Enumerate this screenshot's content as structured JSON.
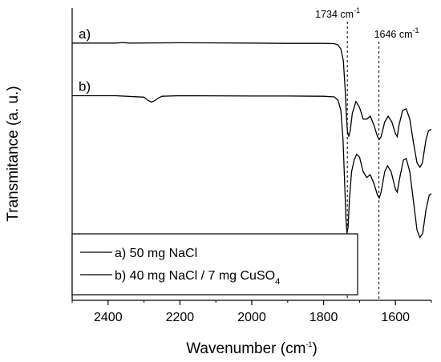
{
  "chart_data": {
    "type": "line",
    "xlabel": "Wavenumber",
    "xlabel_unit": "cm",
    "xlabel_unit_exp": "-1",
    "ylabel": "Transmitance (a. u.)",
    "xlim": [
      2500,
      1500
    ],
    "x_reversed": true,
    "ylim": [
      0,
      100
    ],
    "y_ticks": "none",
    "x_ticks": [
      2400,
      2200,
      2000,
      1800,
      1600
    ],
    "grid": false,
    "legend_position": "bottom-left",
    "series": [
      {
        "name": "a) 50 mg NaCl",
        "trace_label": "a)",
        "color": "#000000",
        "points": [
          [
            2500,
            88.0
          ],
          [
            2380,
            88.0
          ],
          [
            2360,
            88.2
          ],
          [
            2340,
            88.0
          ],
          [
            2200,
            88.1
          ],
          [
            2000,
            88.0
          ],
          [
            1900,
            87.9
          ],
          [
            1800,
            87.9
          ],
          [
            1770,
            87.8
          ],
          [
            1760,
            87.4
          ],
          [
            1752,
            86.0
          ],
          [
            1745,
            82.0
          ],
          [
            1740,
            72.0
          ],
          [
            1736,
            62.0
          ],
          [
            1734,
            58.0
          ],
          [
            1730,
            56.0
          ],
          [
            1726,
            58.0
          ],
          [
            1720,
            64.0
          ],
          [
            1710,
            68.0
          ],
          [
            1700,
            66.0
          ],
          [
            1690,
            62.0
          ],
          [
            1680,
            62.0
          ],
          [
            1670,
            63.0
          ],
          [
            1660,
            60.0
          ],
          [
            1650,
            56.0
          ],
          [
            1645,
            55.0
          ],
          [
            1640,
            56.0
          ],
          [
            1630,
            61.0
          ],
          [
            1620,
            63.0
          ],
          [
            1610,
            61.0
          ],
          [
            1600,
            57.0
          ],
          [
            1595,
            56.0
          ],
          [
            1590,
            60.0
          ],
          [
            1580,
            65.0
          ],
          [
            1570,
            65.5
          ],
          [
            1560,
            62.0
          ],
          [
            1550,
            54.0
          ],
          [
            1540,
            47.0
          ],
          [
            1532,
            45.5
          ],
          [
            1525,
            47.0
          ],
          [
            1515,
            55.0
          ],
          [
            1508,
            58.0
          ],
          [
            1500,
            58.5
          ]
        ]
      },
      {
        "name": "b) 40 mg NaCl / 7 mg CuSO",
        "name_subscript": "4",
        "trace_label": "b)",
        "color": "#000000",
        "points": [
          [
            2500,
            70.0
          ],
          [
            2380,
            70.0
          ],
          [
            2300,
            69.5
          ],
          [
            2290,
            68.5
          ],
          [
            2280,
            67.8
          ],
          [
            2270,
            68.3
          ],
          [
            2260,
            69.2
          ],
          [
            2250,
            69.8
          ],
          [
            2200,
            70.0
          ],
          [
            2000,
            69.9
          ],
          [
            1900,
            69.9
          ],
          [
            1800,
            69.8
          ],
          [
            1770,
            69.6
          ],
          [
            1760,
            68.5
          ],
          [
            1752,
            65.0
          ],
          [
            1746,
            55.0
          ],
          [
            1742,
            42.0
          ],
          [
            1738,
            28.0
          ],
          [
            1735,
            23.0
          ],
          [
            1732,
            25.0
          ],
          [
            1728,
            35.0
          ],
          [
            1722,
            44.0
          ],
          [
            1715,
            48.0
          ],
          [
            1708,
            50.0
          ],
          [
            1700,
            49.0
          ],
          [
            1690,
            44.0
          ],
          [
            1680,
            42.0
          ],
          [
            1670,
            43.0
          ],
          [
            1660,
            40.0
          ],
          [
            1650,
            36.0
          ],
          [
            1645,
            35.0
          ],
          [
            1640,
            37.0
          ],
          [
            1630,
            44.0
          ],
          [
            1622,
            46.0
          ],
          [
            1612,
            44.0
          ],
          [
            1600,
            38.0
          ],
          [
            1595,
            37.0
          ],
          [
            1588,
            42.0
          ],
          [
            1578,
            48.0
          ],
          [
            1570,
            48.5
          ],
          [
            1560,
            44.0
          ],
          [
            1550,
            34.0
          ],
          [
            1540,
            24.0
          ],
          [
            1532,
            21.5
          ],
          [
            1524,
            23.0
          ],
          [
            1515,
            31.0
          ],
          [
            1506,
            36.0
          ],
          [
            1500,
            36.5
          ]
        ]
      }
    ],
    "annotations": [
      {
        "label": "1734 cm",
        "exp": "-1",
        "x": 1734
      },
      {
        "label": "1646 cm",
        "exp": "-1",
        "x": 1646
      }
    ]
  }
}
